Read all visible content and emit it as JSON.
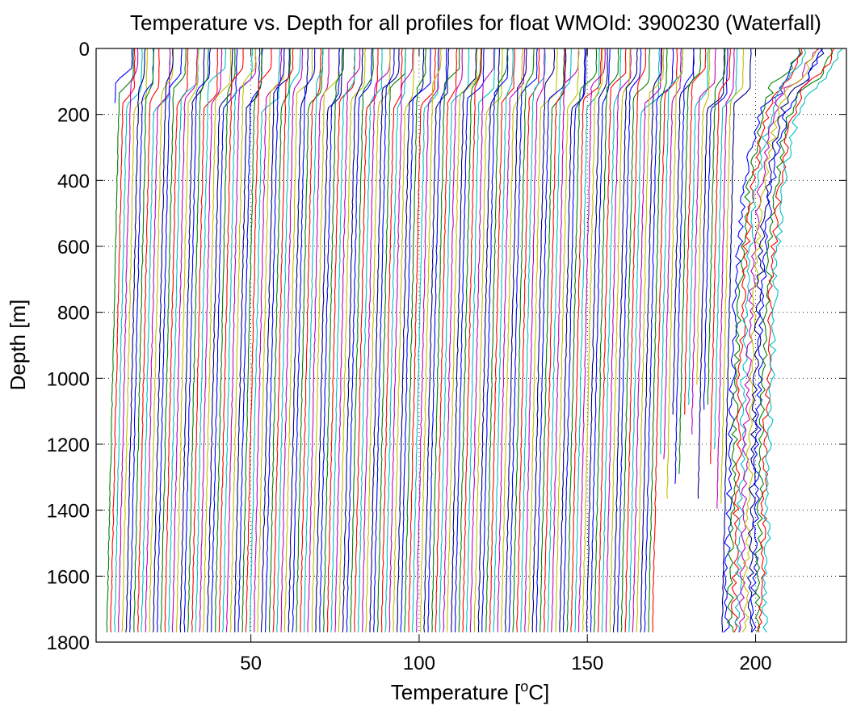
{
  "chart_data": {
    "type": "line",
    "title": "Temperature vs. Depth for all profiles for float WMOId: 3900230 (Waterfall)",
    "xlabel_prefix": "Temperature [",
    "xlabel_sup": "o",
    "xlabel_suffix": "C]",
    "ylabel": "Depth [m]",
    "xlim": [
      4,
      227
    ],
    "ylim": [
      0,
      1800
    ],
    "y_reversed": true,
    "x_ticks": [
      50,
      100,
      150,
      200
    ],
    "y_ticks": [
      0,
      200,
      400,
      600,
      800,
      1000,
      1200,
      1400,
      1600,
      1800
    ],
    "grid": "dotted",
    "legend": "none",
    "series_colors": [
      "#0000ff",
      "#008000",
      "#ff0000",
      "#00bfbf",
      "#bf00bf",
      "#bfbf00",
      "#000080"
    ],
    "waterfall": {
      "profile_count": 172,
      "first_profile_surface_temp": 8,
      "offset_per_profile": 1.15,
      "typical_max_depth": 1780,
      "deep_temp_drop": 4,
      "note_temps": "Profiles are horizontally offset for display (waterfall)"
    }
  }
}
